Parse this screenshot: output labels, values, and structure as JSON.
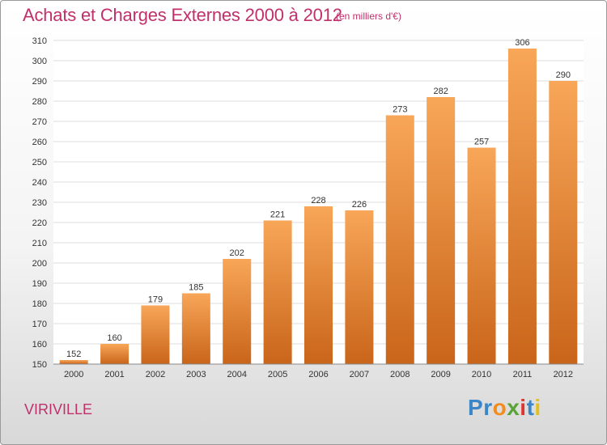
{
  "header": {
    "title": "Achats et Charges Externes 2000 à 2012",
    "subtitle": "(en milliers d'€)"
  },
  "footer": {
    "commune": "VIRIVILLE",
    "logo": {
      "letters": [
        "P",
        "r",
        "o",
        "x",
        "i",
        "t",
        "i"
      ],
      "colors": [
        "#3b86c9",
        "#3b86c9",
        "#f28c1c",
        "#5aa336",
        "#e0342c",
        "#3b86c9",
        "#e4c01c"
      ]
    }
  },
  "colors": {
    "title": "#c0306a",
    "bar_top": "#f8a658",
    "bar_bottom": "#c9651a"
  },
  "chart_data": {
    "type": "bar",
    "title": "Achats et Charges Externes 2000 à 2012",
    "subtitle": "(en milliers d'€)",
    "xlabel": "",
    "ylabel": "",
    "categories": [
      "2000",
      "2001",
      "2002",
      "2003",
      "2004",
      "2005",
      "2006",
      "2007",
      "2008",
      "2009",
      "2010",
      "2011",
      "2012"
    ],
    "values": [
      152,
      160,
      179,
      185,
      202,
      221,
      228,
      226,
      273,
      282,
      257,
      306,
      290
    ],
    "ylim": [
      150,
      310
    ],
    "yticks": [
      150,
      160,
      170,
      180,
      190,
      200,
      210,
      220,
      230,
      240,
      250,
      260,
      270,
      280,
      290,
      300,
      310
    ],
    "grid": true
  }
}
